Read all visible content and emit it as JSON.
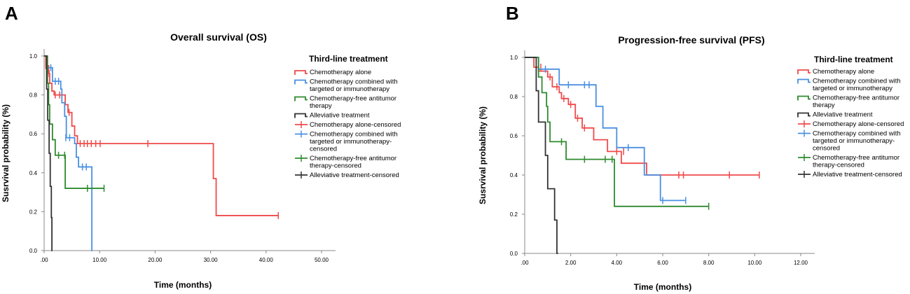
{
  "colors": {
    "chemo": "#f04a4a",
    "combined": "#4a90e2",
    "chemo_free": "#2e8b2e",
    "alleviative": "#333333",
    "axis": "#888888"
  },
  "panels": {
    "a": {
      "letter": "A"
    },
    "b": {
      "letter": "B"
    }
  },
  "chart_data": [
    {
      "type": "line",
      "step": true,
      "panel": "A",
      "title": "Overall survival (OS)",
      "xlabel": "Time (months)",
      "ylabel": "Susrvival probability (%)",
      "xlim": [
        0,
        50
      ],
      "ylim": [
        0,
        1
      ],
      "x_ticks": [
        0,
        10,
        20,
        30,
        40,
        50
      ],
      "x_tick_labels": [
        ".00",
        "10.00",
        "20.00",
        "30.00",
        "40.00",
        "50.00"
      ],
      "y_ticks": [
        0,
        0.2,
        0.4,
        0.6,
        0.8,
        1.0
      ],
      "y_tick_labels": [
        "0.0",
        "0.2",
        "0.4",
        "0.6",
        "0.8",
        "1.0"
      ],
      "legend_title": "Third-line treatment",
      "legend": [
        {
          "label": [
            "Chemotherapy alone"
          ],
          "color_key": "chemo",
          "censored": false
        },
        {
          "label": [
            "Chemotherapy combined with",
            "targeted or immunotherapy"
          ],
          "color_key": "combined",
          "censored": false
        },
        {
          "label": [
            "Chemotherapy-free antitumor",
            "therapy"
          ],
          "color_key": "chemo_free",
          "censored": false
        },
        {
          "label": [
            "Alleviative treatment"
          ],
          "color_key": "alleviative",
          "censored": false
        },
        {
          "label": [
            "Chemotherapy alone-censored"
          ],
          "color_key": "chemo",
          "censored": true
        },
        {
          "label": [
            "Chemotherapy combined with",
            "targeted or immunotherapy-",
            "censored"
          ],
          "color_key": "combined",
          "censored": true
        },
        {
          "label": [
            "Chemotherapy-free antitumor",
            "therapy-censored"
          ],
          "color_key": "chemo_free",
          "censored": true
        },
        {
          "label": [
            "Alleviative treatment-censored"
          ],
          "color_key": "alleviative",
          "censored": true
        }
      ],
      "series": [
        {
          "name": "Chemotherapy alone",
          "color_key": "chemo",
          "steps": [
            [
              0,
              1.0
            ],
            [
              0.3,
              0.95
            ],
            [
              0.8,
              0.91
            ],
            [
              1.0,
              0.86
            ],
            [
              1.4,
              0.82
            ],
            [
              1.8,
              0.8
            ],
            [
              3.8,
              0.75
            ],
            [
              4.3,
              0.71
            ],
            [
              5.0,
              0.64
            ],
            [
              5.5,
              0.59
            ],
            [
              6.0,
              0.55
            ],
            [
              30.5,
              0.37
            ],
            [
              31.0,
              0.18
            ],
            [
              42.2,
              0.18
            ]
          ],
          "censored": [
            [
              0.3,
              0.95
            ],
            [
              0.9,
              0.91
            ],
            [
              2.0,
              0.8
            ],
            [
              2.8,
              0.8
            ],
            [
              4.5,
              0.71
            ],
            [
              6.5,
              0.55
            ],
            [
              7.2,
              0.55
            ],
            [
              7.8,
              0.55
            ],
            [
              8.5,
              0.55
            ],
            [
              9.3,
              0.55
            ],
            [
              10.1,
              0.55
            ],
            [
              18.7,
              0.55
            ],
            [
              42.2,
              0.18
            ]
          ]
        },
        {
          "name": "Chemotherapy combined with targeted or immunotherapy",
          "color_key": "combined",
          "steps": [
            [
              0,
              1.0
            ],
            [
              0.5,
              0.94
            ],
            [
              1.5,
              0.87
            ],
            [
              3.0,
              0.83
            ],
            [
              3.2,
              0.76
            ],
            [
              3.7,
              0.69
            ],
            [
              4.0,
              0.58
            ],
            [
              5.5,
              0.55
            ],
            [
              5.8,
              0.48
            ],
            [
              6.2,
              0.43
            ],
            [
              8.5,
              0.43
            ],
            [
              8.6,
              0
            ],
            [
              8.7,
              0
            ]
          ],
          "censored": [
            [
              1.2,
              0.94
            ],
            [
              2.0,
              0.87
            ],
            [
              2.6,
              0.87
            ],
            [
              3.9,
              0.58
            ],
            [
              4.6,
              0.58
            ],
            [
              6.9,
              0.43
            ],
            [
              7.6,
              0.43
            ]
          ]
        },
        {
          "name": "Chemotherapy-free antitumor therapy",
          "color_key": "chemo_free",
          "steps": [
            [
              0,
              1.0
            ],
            [
              0.6,
              0.86
            ],
            [
              0.8,
              0.75
            ],
            [
              1.0,
              0.65
            ],
            [
              1.5,
              0.57
            ],
            [
              2.0,
              0.49
            ],
            [
              3.8,
              0.32
            ],
            [
              10.8,
              0.32
            ]
          ],
          "censored": [
            [
              2.6,
              0.49
            ],
            [
              3.7,
              0.49
            ],
            [
              7.8,
              0.32
            ],
            [
              10.8,
              0.32
            ]
          ]
        },
        {
          "name": "Alleviative treatment",
          "color_key": "alleviative",
          "steps": [
            [
              0,
              1.0
            ],
            [
              0.45,
              0.83
            ],
            [
              0.65,
              0.67
            ],
            [
              0.9,
              0.5
            ],
            [
              1.1,
              0.33
            ],
            [
              1.3,
              0.17
            ],
            [
              1.4,
              0
            ],
            [
              1.5,
              0
            ]
          ],
          "censored": []
        }
      ]
    },
    {
      "type": "line",
      "step": true,
      "panel": "B",
      "title": "Progression-free survival (PFS)",
      "xlabel": "Time (months)",
      "ylabel": "Susrvival probability (%)",
      "xlim": [
        0,
        12
      ],
      "ylim": [
        0,
        1
      ],
      "x_ticks": [
        0,
        2,
        4,
        6,
        8,
        10,
        12
      ],
      "x_tick_labels": [
        ".00",
        "2.00",
        "4.00",
        "6.00",
        "8.00",
        "10.00",
        "12.00"
      ],
      "y_ticks": [
        0,
        0.2,
        0.4,
        0.6,
        0.8,
        1.0
      ],
      "y_tick_labels": [
        "0.0",
        "0.2",
        "0.4",
        "0.6",
        "0.8",
        "1.0"
      ],
      "legend_title": "Third-line treatment",
      "legend": [
        {
          "label": [
            "Chemotherapy alone"
          ],
          "color_key": "chemo",
          "censored": false
        },
        {
          "label": [
            "Chemotherapy combined with",
            "targeted or immunotherapy"
          ],
          "color_key": "combined",
          "censored": false
        },
        {
          "label": [
            "Chemotherapy-free antitumor",
            "therapy"
          ],
          "color_key": "chemo_free",
          "censored": false
        },
        {
          "label": [
            "Alleviative treatment"
          ],
          "color_key": "alleviative",
          "censored": false
        },
        {
          "label": [
            "Chemotherapy alone-censored"
          ],
          "color_key": "chemo",
          "censored": true
        },
        {
          "label": [
            "Chemotherapy combined with",
            "targeted or immunotherapy-",
            "censored"
          ],
          "color_key": "combined",
          "censored": true
        },
        {
          "label": [
            "Chemotherapy-free antitumor",
            "therapy-censored"
          ],
          "color_key": "chemo_free",
          "censored": true
        },
        {
          "label": [
            "Alleviative treatment-censored"
          ],
          "color_key": "alleviative",
          "censored": true
        }
      ],
      "series": [
        {
          "name": "Chemotherapy alone",
          "color_key": "chemo",
          "steps": [
            [
              0,
              1.0
            ],
            [
              0.4,
              0.95
            ],
            [
              0.6,
              0.93
            ],
            [
              1.0,
              0.9
            ],
            [
              1.2,
              0.85
            ],
            [
              1.5,
              0.82
            ],
            [
              1.6,
              0.79
            ],
            [
              1.9,
              0.76
            ],
            [
              2.2,
              0.69
            ],
            [
              2.5,
              0.64
            ],
            [
              3.0,
              0.58
            ],
            [
              3.6,
              0.52
            ],
            [
              4.2,
              0.46
            ],
            [
              5.3,
              0.4
            ],
            [
              10.2,
              0.4
            ]
          ],
          "censored": [
            [
              0.7,
              0.95
            ],
            [
              1.1,
              0.9
            ],
            [
              1.4,
              0.85
            ],
            [
              1.7,
              0.79
            ],
            [
              2.0,
              0.76
            ],
            [
              2.3,
              0.69
            ],
            [
              2.6,
              0.64
            ],
            [
              4.0,
              0.52
            ],
            [
              4.3,
              0.52
            ],
            [
              6.7,
              0.4
            ],
            [
              6.9,
              0.4
            ],
            [
              8.9,
              0.4
            ],
            [
              10.2,
              0.4
            ]
          ]
        },
        {
          "name": "Chemotherapy combined with targeted or immunotherapy",
          "color_key": "combined",
          "steps": [
            [
              0,
              1.0
            ],
            [
              0.6,
              0.94
            ],
            [
              1.5,
              0.86
            ],
            [
              3.1,
              0.75
            ],
            [
              3.4,
              0.64
            ],
            [
              4.0,
              0.54
            ],
            [
              5.2,
              0.4
            ],
            [
              5.9,
              0.27
            ],
            [
              7.0,
              0.27
            ]
          ],
          "censored": [
            [
              0.9,
              0.94
            ],
            [
              1.9,
              0.86
            ],
            [
              2.6,
              0.86
            ],
            [
              2.8,
              0.86
            ],
            [
              4.5,
              0.54
            ],
            [
              6.0,
              0.27
            ],
            [
              7.0,
              0.27
            ]
          ]
        },
        {
          "name": "Chemotherapy-free antitumor therapy",
          "color_key": "chemo_free",
          "steps": [
            [
              0,
              1.0
            ],
            [
              0.6,
              0.9
            ],
            [
              0.75,
              0.82
            ],
            [
              0.95,
              0.75
            ],
            [
              1.0,
              0.67
            ],
            [
              1.1,
              0.57
            ],
            [
              1.8,
              0.48
            ],
            [
              3.9,
              0.24
            ],
            [
              8.0,
              0.24
            ]
          ],
          "censored": [
            [
              1.6,
              0.57
            ],
            [
              2.6,
              0.48
            ],
            [
              3.5,
              0.48
            ],
            [
              3.8,
              0.48
            ],
            [
              8.0,
              0.24
            ]
          ]
        },
        {
          "name": "Alleviative treatment",
          "color_key": "alleviative",
          "steps": [
            [
              0,
              1.0
            ],
            [
              0.5,
              0.83
            ],
            [
              0.6,
              0.67
            ],
            [
              0.9,
              0.5
            ],
            [
              1.0,
              0.33
            ],
            [
              1.3,
              0.17
            ],
            [
              1.4,
              0
            ],
            [
              1.45,
              0
            ]
          ],
          "censored": []
        }
      ]
    }
  ]
}
